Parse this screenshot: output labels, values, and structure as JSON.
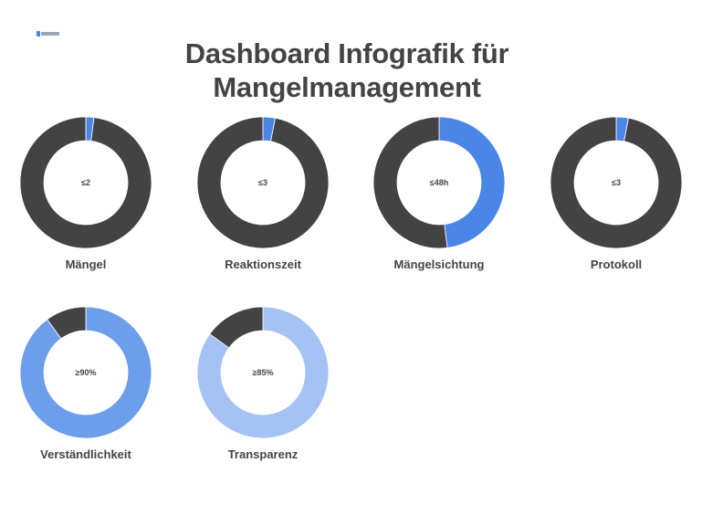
{
  "header": {
    "title_line1": "Dashboard Infografik für",
    "title_line2": "Mangelmanagement"
  },
  "chart_data": [
    {
      "type": "pie",
      "title": "Mängel",
      "center_text": "≤2",
      "slices": [
        {
          "value": 2,
          "color": "#4a86e8"
        },
        {
          "value": 98,
          "color": "#434343"
        }
      ]
    },
    {
      "type": "pie",
      "title": "Reaktionszeit",
      "center_text": "≤3",
      "slices": [
        {
          "value": 3,
          "color": "#4a86e8"
        },
        {
          "value": 97,
          "color": "#434343"
        }
      ]
    },
    {
      "type": "pie",
      "title": "Mängelsichtung",
      "center_text": "≤48h",
      "slices": [
        {
          "value": 48,
          "color": "#4a86e8"
        },
        {
          "value": 52,
          "color": "#434343"
        }
      ]
    },
    {
      "type": "pie",
      "title": "Protokoll",
      "center_text": "≤3",
      "slices": [
        {
          "value": 3,
          "color": "#4a86e8"
        },
        {
          "value": 97,
          "color": "#434343"
        }
      ]
    },
    {
      "type": "pie",
      "title": "Verständlichkeit",
      "center_text": "≥90%",
      "slices": [
        {
          "value": 90,
          "color": "#6d9eeb"
        },
        {
          "value": 10,
          "color": "#434343"
        }
      ]
    },
    {
      "type": "pie",
      "title": "Transparenz",
      "center_text": "≥85%",
      "slices": [
        {
          "value": 85,
          "color": "#a4c2f4"
        },
        {
          "value": 15,
          "color": "#434343"
        }
      ]
    }
  ]
}
